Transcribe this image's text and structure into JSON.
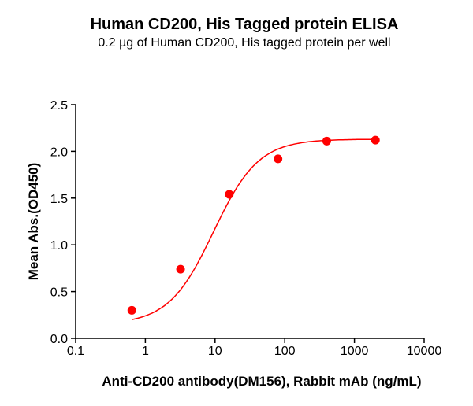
{
  "chart_data": {
    "type": "scatter",
    "title": "Human CD200, His Tagged protein  ELISA",
    "subtitle": "0.2 µg of Human CD200, His tagged protein per well",
    "xlabel": "Anti-CD200 antibody(DM156), Rabbit mAb (ng/mL)",
    "ylabel": "Mean Abs.(OD450)",
    "xscale": "log",
    "xlim": [
      0.1,
      10000
    ],
    "ylim": [
      0,
      2.5
    ],
    "xticks": [
      "0.1",
      "1",
      "10",
      "100",
      "1000",
      "10000"
    ],
    "yticks": [
      "0.0",
      "0.5",
      "1.0",
      "1.5",
      "2.0",
      "2.5"
    ],
    "grid": false,
    "legend": null,
    "series": [
      {
        "name": "Anti-CD200 antibody(DM156)",
        "color": "#ff0000",
        "x": [
          0.64,
          3.2,
          16,
          80,
          400,
          2000
        ],
        "y": [
          0.3,
          0.74,
          1.54,
          1.92,
          2.11,
          2.12
        ],
        "fit": "4-parameter logistic curve"
      }
    ]
  }
}
